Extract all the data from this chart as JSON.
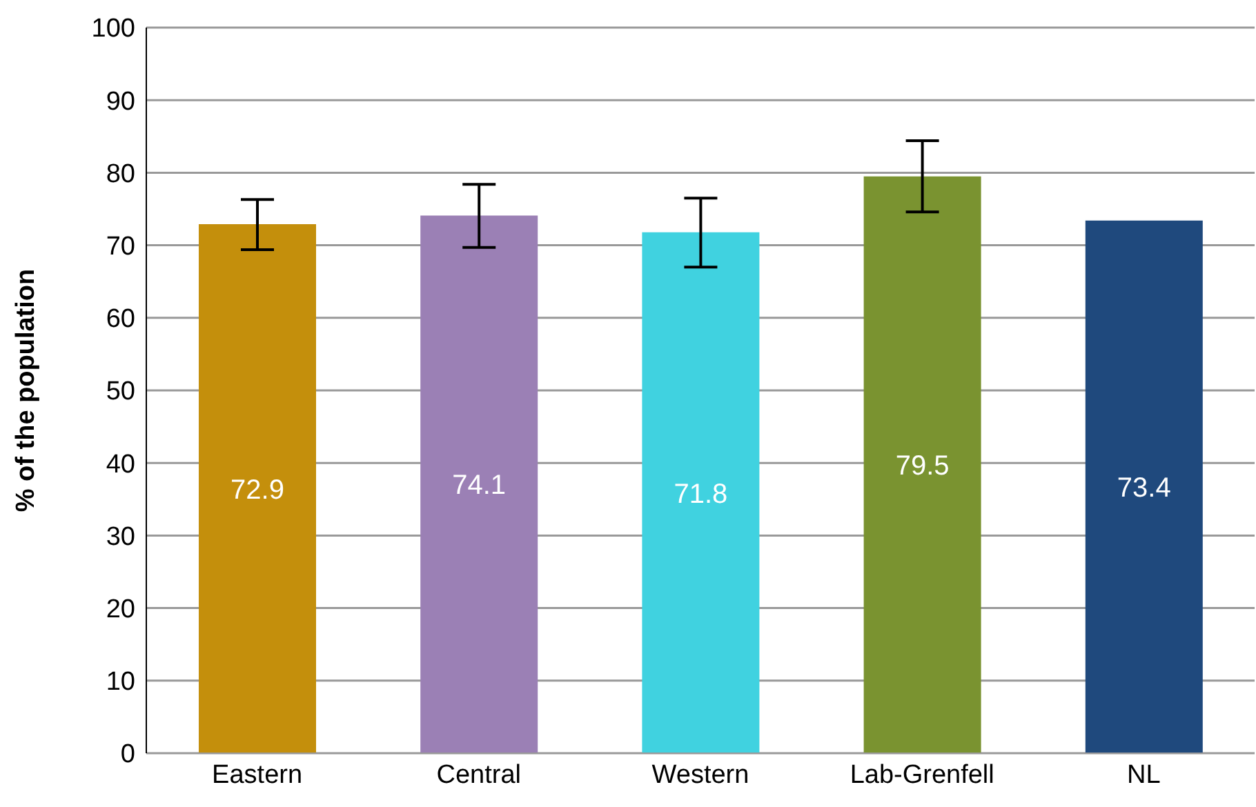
{
  "chart_data": {
    "type": "bar",
    "ylabel": "% of the population",
    "categories": [
      "Eastern",
      "Central",
      "Western",
      "Lab-Grenfell",
      "NL"
    ],
    "values": [
      72.9,
      74.1,
      71.8,
      79.5,
      73.4
    ],
    "colors": [
      "#c48f0c",
      "#9b80b5",
      "#40d2e0",
      "#7a9330",
      "#1f497d"
    ],
    "errors": [
      [
        69.4,
        76.3
      ],
      [
        69.7,
        78.4
      ],
      [
        67.0,
        76.5
      ],
      [
        74.6,
        84.4
      ],
      null
    ],
    "data_labels": true,
    "ylim": [
      0,
      100
    ],
    "yticks": [
      0,
      10,
      20,
      30,
      40,
      50,
      60,
      70,
      80,
      90,
      100
    ],
    "grid": "y"
  }
}
